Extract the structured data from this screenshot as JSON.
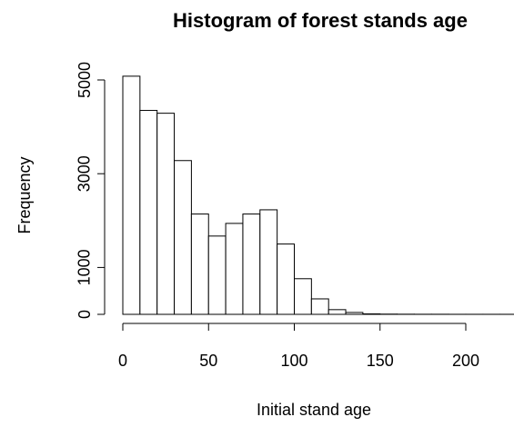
{
  "chart_data": {
    "type": "histogram",
    "title": "Histogram of forest stands age",
    "x_label": "Initial stand age",
    "y_label": "Frequency",
    "bins": [
      0,
      10,
      20,
      30,
      40,
      50,
      60,
      70,
      80,
      90,
      100,
      110,
      120,
      130,
      140,
      150,
      160,
      170,
      180,
      190,
      200,
      210,
      220,
      230
    ],
    "values": [
      5080,
      4350,
      4290,
      3280,
      2140,
      1670,
      1940,
      2140,
      2230,
      1500,
      760,
      330,
      100,
      40,
      10,
      5,
      3,
      2,
      2,
      1,
      1,
      1,
      1
    ],
    "color": "#ffffff",
    "xlim": [
      0,
      200
    ],
    "xticks": [
      0,
      50,
      100,
      150,
      200
    ],
    "ylim": [
      0,
      5000
    ],
    "yticks": [
      0,
      1000,
      3000,
      5000
    ]
  }
}
